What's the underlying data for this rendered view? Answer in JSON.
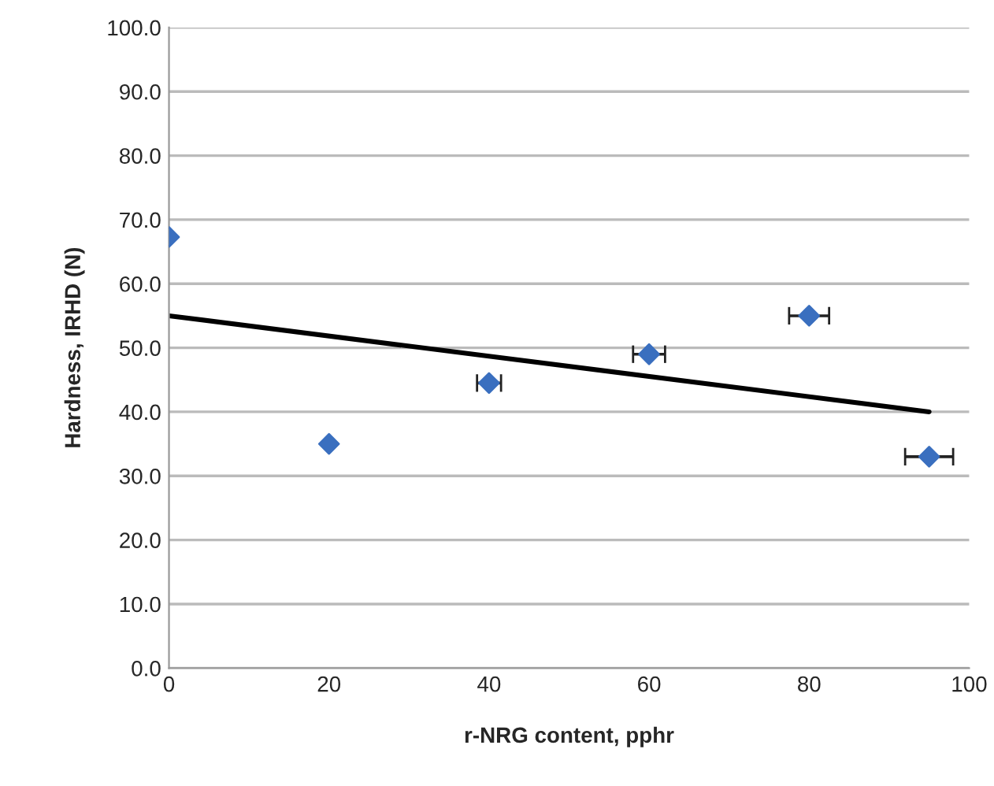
{
  "chart_data": {
    "type": "scatter",
    "xlabel": "r-NRG content, pphr",
    "ylabel": "Hardness, IRHD (N)",
    "x": [
      0,
      20,
      40,
      60,
      80,
      95
    ],
    "series": [
      {
        "color": "#3a6fbf",
        "values": [
          67.3,
          35.0,
          44.5,
          49.0,
          55.0,
          33.0
        ],
        "xerrors": [
          null,
          null,
          1.5,
          2,
          2.5,
          3
        ],
        "marker": "diamond"
      },
      {
        "type": "line",
        "color": "#000000",
        "x": [
          0,
          95
        ],
        "values": [
          55.0,
          40.0
        ],
        "marker": "none",
        "line_style": "solid"
      }
    ],
    "xlim": [
      0,
      100
    ],
    "xticks": [
      0,
      20,
      40,
      60,
      80,
      100
    ],
    "ylim": [
      0,
      100
    ],
    "yticks": [
      {
        "value": 0,
        "label": "0.0"
      },
      {
        "value": 10,
        "label": "10.0"
      },
      {
        "value": 20,
        "label": "20.0"
      },
      {
        "value": 30,
        "label": "30.0"
      },
      {
        "value": 40,
        "label": "40.0"
      },
      {
        "value": 50,
        "label": "50.0"
      },
      {
        "value": 60,
        "label": "60.0"
      },
      {
        "value": 70,
        "label": "70.0"
      },
      {
        "value": 80,
        "label": "80.0"
      },
      {
        "value": 90,
        "label": "90.0"
      },
      {
        "value": 100,
        "label": "100.0"
      }
    ],
    "grid": "y",
    "legend": false
  }
}
